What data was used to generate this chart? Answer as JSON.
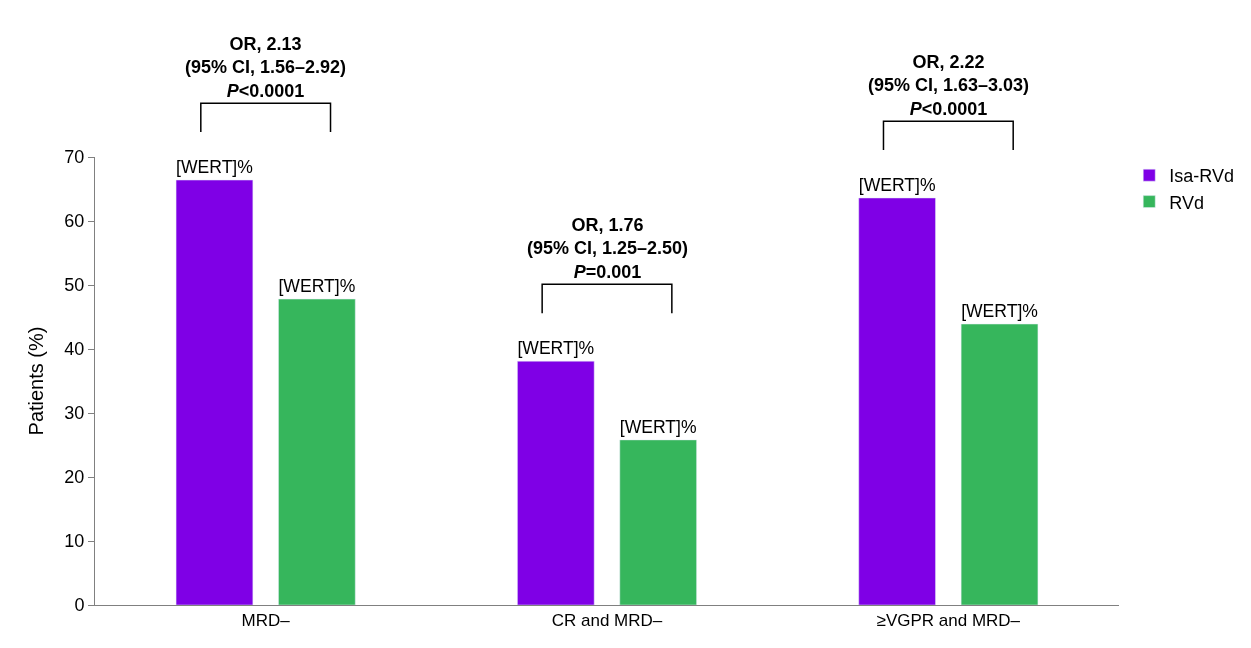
{
  "chart_data": {
    "type": "bar",
    "ylabel": "Patients (%)",
    "categories": [
      "MRD–",
      "CR and MRD–",
      "≥VGPR and MRD–"
    ],
    "series": [
      {
        "name": "Isa-RVd",
        "color": "#7f00e6",
        "values": [
          66.4,
          38.1,
          63.6
        ],
        "value_labels": [
          "[WERT]%",
          "[WERT]%",
          "[WERT]%"
        ]
      },
      {
        "name": "RVd",
        "color": "#36b65c",
        "values": [
          47.8,
          25.8,
          43.9
        ],
        "value_labels": [
          "[WERT]%",
          "[WERT]%",
          "[WERT]%"
        ]
      }
    ],
    "ylim": [
      0,
      70
    ],
    "yticks": [
      0,
      10,
      20,
      30,
      40,
      50,
      60,
      70
    ],
    "legend": "top right",
    "annotations": [
      "OR, 2.13\n(95% CI, 1.56–2.92)\nP<0.0001",
      "OR, 1.76\n(95% CI, 1.25–2.50)\nP=0.001",
      "OR, 2.22\n(95% CI, 1.63–3.03)\nP<0.0001"
    ]
  }
}
